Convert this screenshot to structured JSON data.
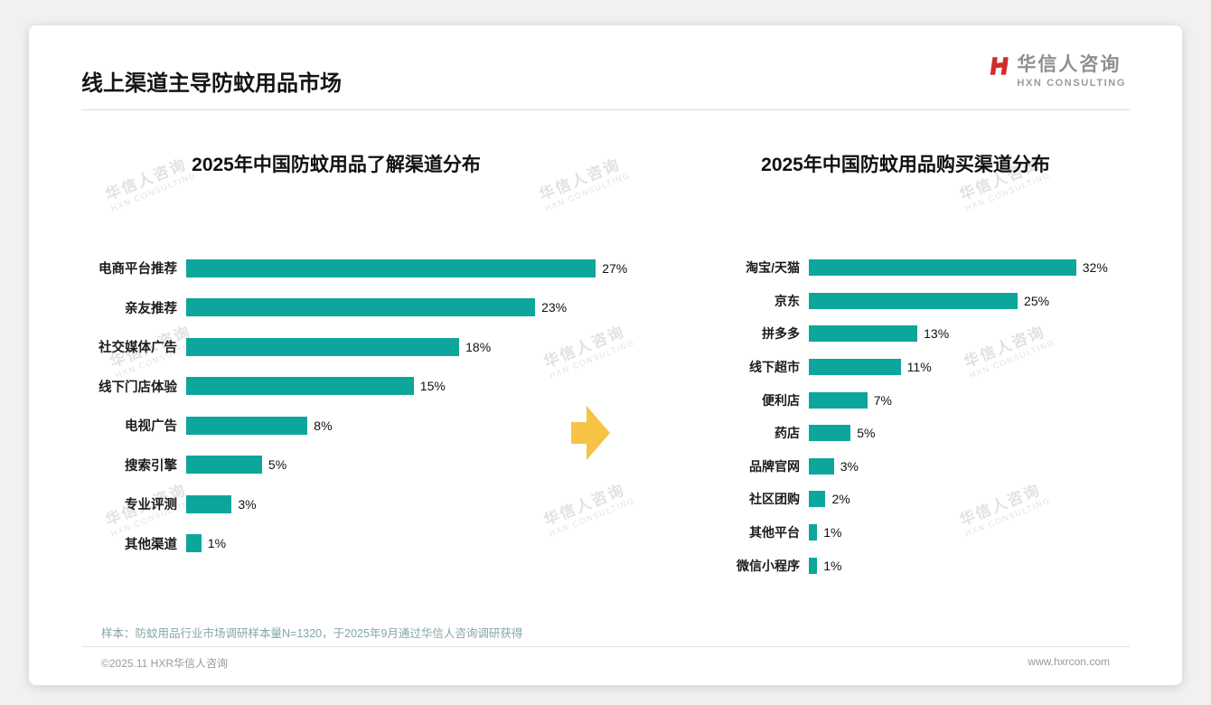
{
  "header": {
    "title": "线上渠道主导防蚊用品市场",
    "logo": {
      "cn": "华信人咨询",
      "en": "HXN CONSULTING"
    }
  },
  "chart_data": [
    {
      "type": "bar",
      "orientation": "horizontal",
      "title": "2025年中国防蚊用品了解渠道分布",
      "categories": [
        "电商平台推荐",
        "亲友推荐",
        "社交媒体广告",
        "线下门店体验",
        "电视广告",
        "搜索引擎",
        "专业评测",
        "其他渠道"
      ],
      "values": [
        27,
        23,
        18,
        15,
        8,
        5,
        3,
        1
      ],
      "unit": "%",
      "xlim": [
        0,
        28
      ],
      "bar_color": "#0da69d",
      "value_labels": true,
      "grid": false,
      "legend": "none"
    },
    {
      "type": "bar",
      "orientation": "horizontal",
      "title": "2025年中国防蚊用品购买渠道分布",
      "categories": [
        "淘宝/天猫",
        "京东",
        "拼多多",
        "线下超市",
        "便利店",
        "药店",
        "品牌官网",
        "社区团购",
        "其他平台",
        "微信小程序"
      ],
      "values": [
        32,
        25,
        13,
        11,
        7,
        5,
        3,
        2,
        1,
        1
      ],
      "unit": "%",
      "xlim": [
        0,
        33
      ],
      "bar_color": "#0da69d",
      "value_labels": true,
      "grid": false,
      "legend": "none"
    }
  ],
  "footnote": "样本：防蚊用品行业市场调研样本量N=1320，于2025年9月通过华信人咨询调研获得",
  "footer": {
    "left": "©2025.11 HXR华信人咨询",
    "right": "www.hxrcon.com"
  },
  "watermark": {
    "cn": "华信人咨询",
    "en": "HXN CONSULTING"
  },
  "colors": {
    "bar": "#0da69d",
    "arrow": "#f6c344",
    "logo_red": "#cf2e2a"
  }
}
